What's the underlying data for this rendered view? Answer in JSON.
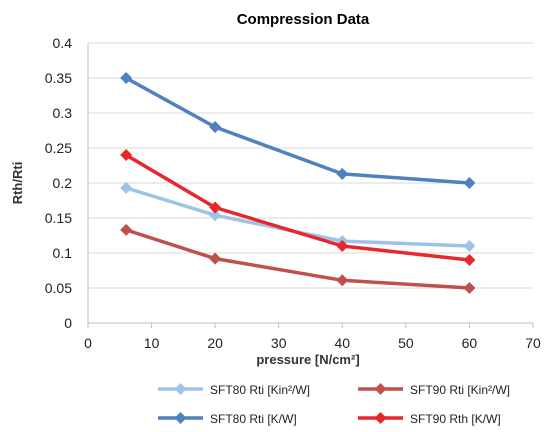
{
  "chart_data": {
    "type": "line",
    "title": "Compression Data",
    "xlabel": "pressure [N/cm²]",
    "ylabel": "Rth/Rti",
    "xlim": [
      0,
      70
    ],
    "ylim": [
      0,
      0.4
    ],
    "x_ticks": [
      "0",
      "10",
      "20",
      "30",
      "40",
      "50",
      "60",
      "70"
    ],
    "y_ticks": [
      "0",
      "0.05",
      "0.1",
      "0.15",
      "0.2",
      "0.25",
      "0.3",
      "0.35",
      "0.4"
    ],
    "grid": "horizontal",
    "legend_position": "bottom",
    "series": [
      {
        "name": "SFT80 Rti [Kin²/W]",
        "color": "#9DC3E6",
        "x": [
          6,
          20,
          40,
          60
        ],
        "y": [
          0.193,
          0.154,
          0.117,
          0.11
        ]
      },
      {
        "name": "SFT90  Rti [Kin²/W]",
        "color": "#C0504D",
        "x": [
          6,
          20,
          40,
          60
        ],
        "y": [
          0.133,
          0.092,
          0.061,
          0.05
        ]
      },
      {
        "name": "SFT80 Rti [K/W]",
        "color": "#4F81BD",
        "x": [
          6,
          20,
          40,
          60
        ],
        "y": [
          0.35,
          0.28,
          0.213,
          0.2
        ]
      },
      {
        "name": "SFT90   Rth [K/W]",
        "color": "#E8262E",
        "x": [
          6,
          20,
          40,
          60
        ],
        "y": [
          0.24,
          0.165,
          0.11,
          0.09
        ]
      }
    ]
  }
}
